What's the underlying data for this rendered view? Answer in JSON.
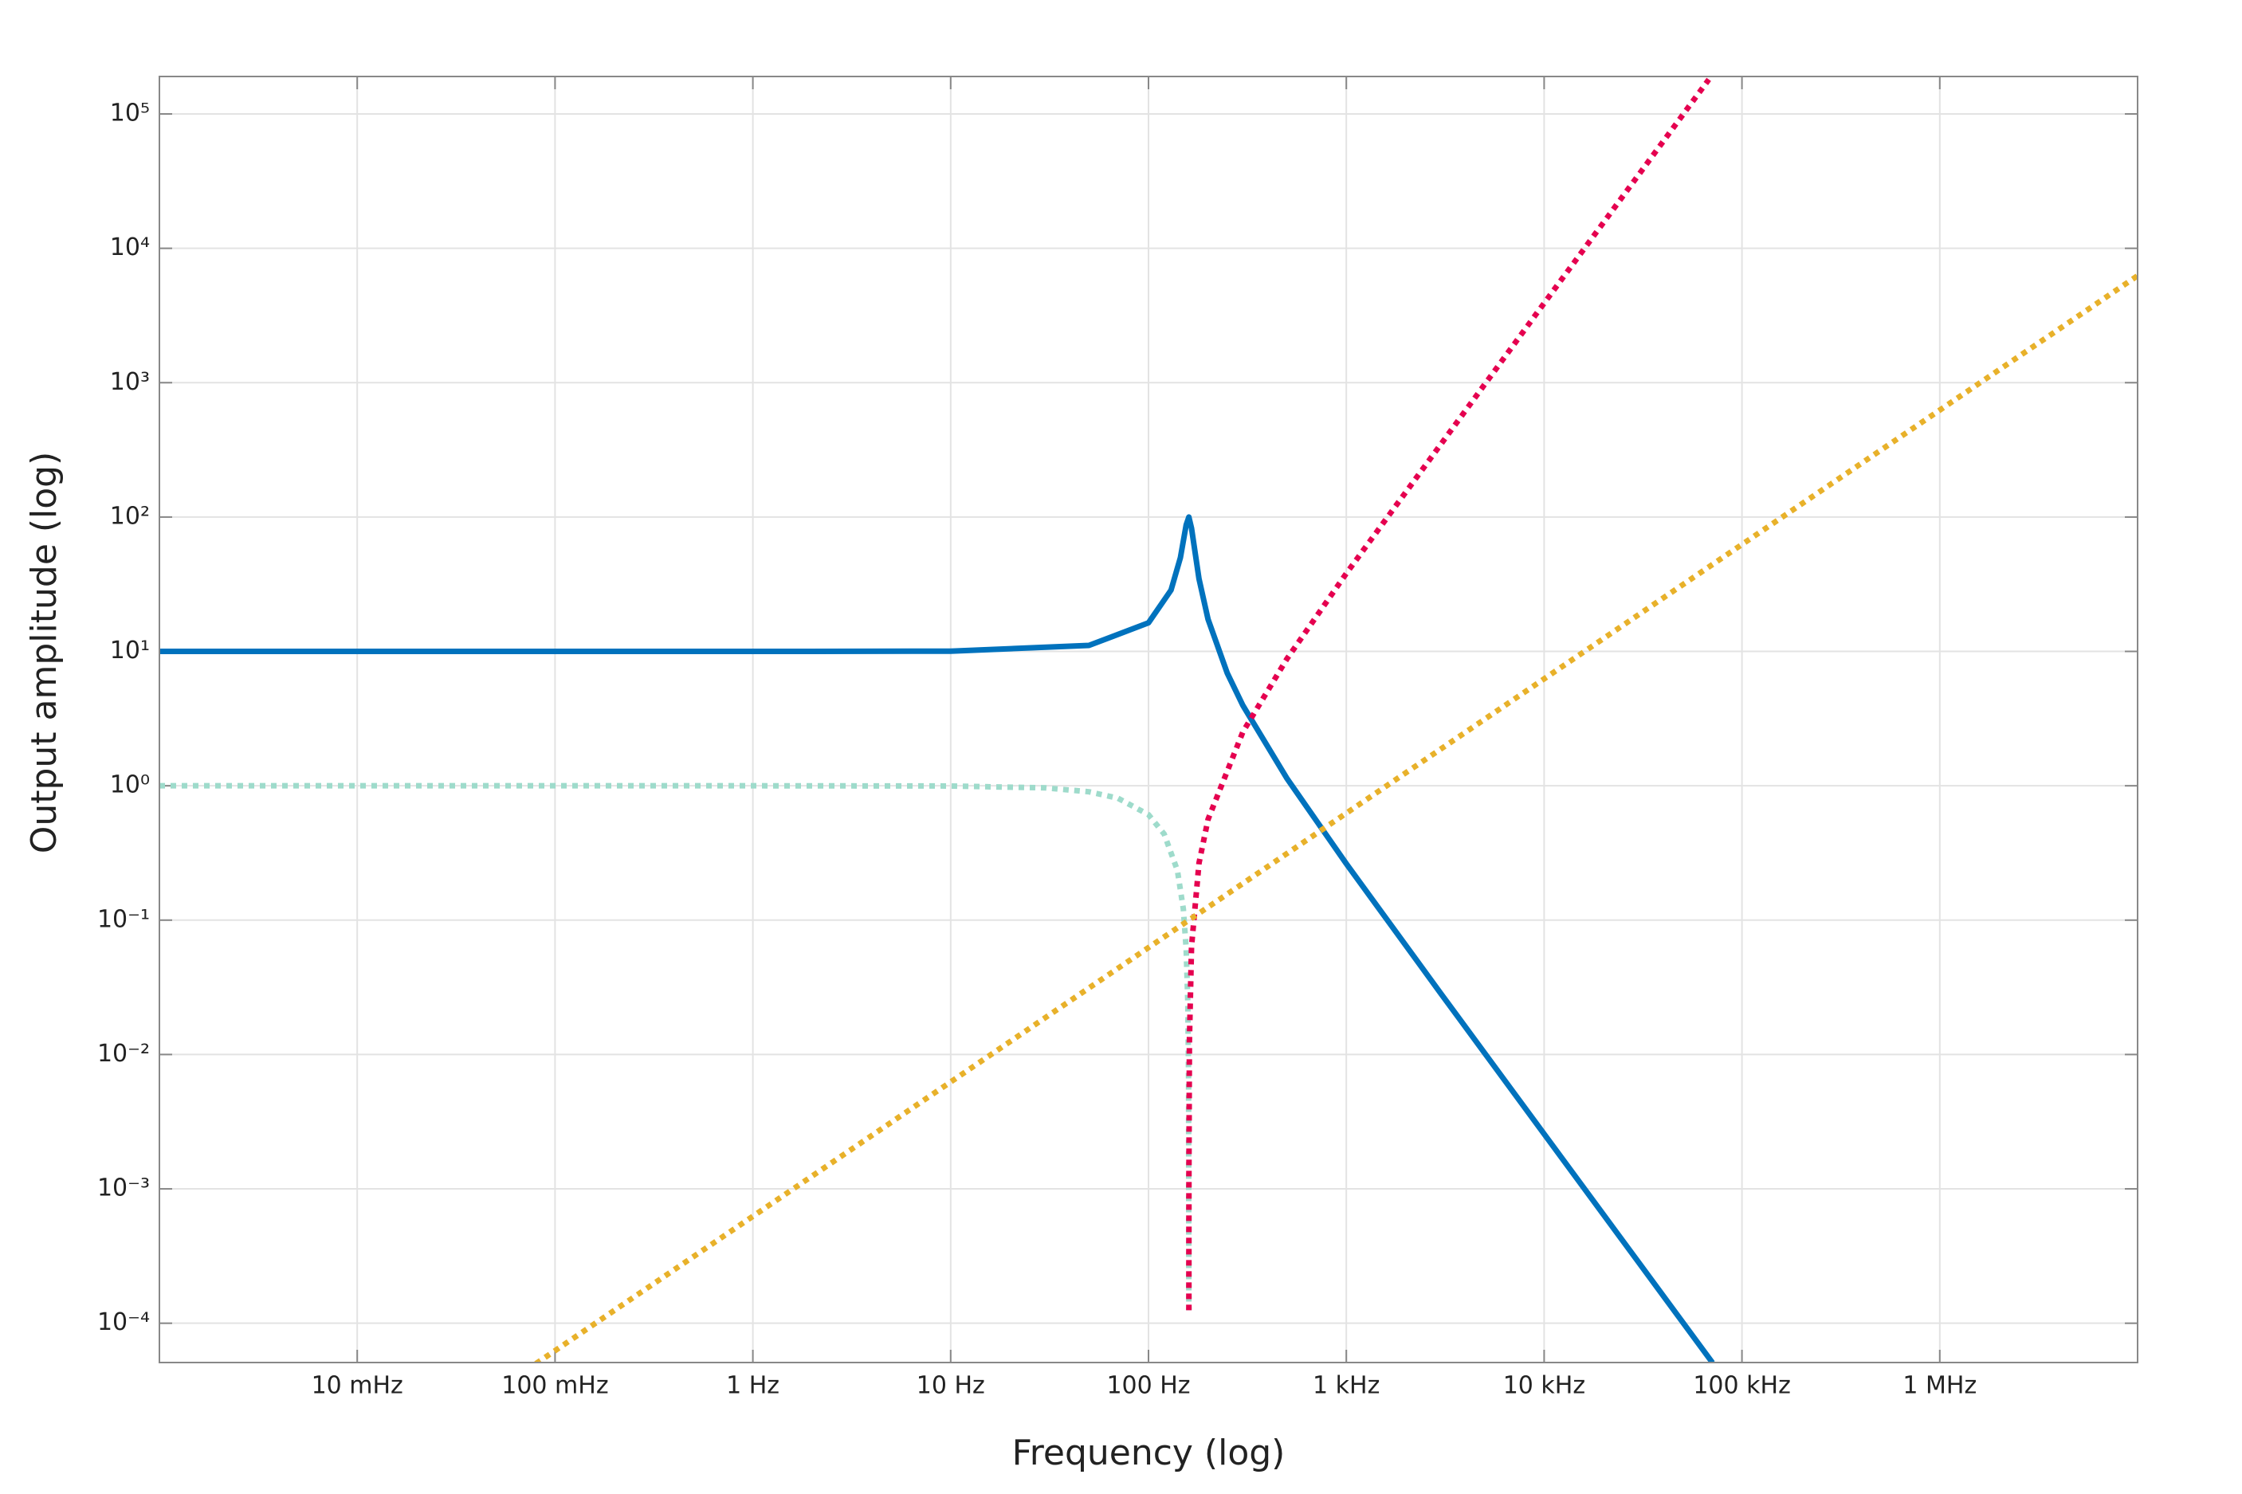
{
  "chart_data": {
    "type": "line",
    "xlabel": "Frequency (log)",
    "ylabel": "Output amplitude (log)",
    "xscale": "log",
    "yscale": "log",
    "grid": true,
    "xlim": [
      0.001,
      10000000
    ],
    "ylim": [
      5.1e-05,
      190000
    ],
    "xticks": [
      {
        "value": 0.01,
        "label": "10 mHz"
      },
      {
        "value": 0.1,
        "label": "100 mHz"
      },
      {
        "value": 1,
        "label": "1 Hz"
      },
      {
        "value": 10,
        "label": "10 Hz"
      },
      {
        "value": 100,
        "label": "100 Hz"
      },
      {
        "value": 1000,
        "label": "1 kHz"
      },
      {
        "value": 10000,
        "label": "10 kHz"
      },
      {
        "value": 100000,
        "label": "100 kHz"
      },
      {
        "value": 1000000,
        "label": "1 MHz"
      }
    ],
    "yticks": [
      {
        "value": 0.0001,
        "label": "10⁻⁴"
      },
      {
        "value": 0.001,
        "label": "10⁻³"
      },
      {
        "value": 0.01,
        "label": "10⁻²"
      },
      {
        "value": 0.1,
        "label": "10⁻¹"
      },
      {
        "value": 1,
        "label": "10⁰"
      },
      {
        "value": 10,
        "label": "10¹"
      },
      {
        "value": 100,
        "label": "10²"
      },
      {
        "value": 1000,
        "label": "10³"
      },
      {
        "value": 10000,
        "label": "10⁴"
      },
      {
        "value": 100000,
        "label": "10⁵"
      }
    ],
    "series": [
      {
        "color": "#0072bd",
        "style": "solid",
        "x": [
          0.001,
          1,
          10,
          50,
          100,
          130,
          145,
          155,
          160,
          165,
          180,
          200,
          250,
          300,
          500,
          1000,
          3000,
          10000,
          30000,
          71000
        ],
        "values": [
          10,
          10,
          10.04,
          11.08,
          16.32,
          28.6,
          49.9,
          87.2,
          100,
          82.6,
          34.7,
          17.35,
          6.9,
          3.96,
          1.14,
          0.2627,
          0.02853,
          0.002561,
          0.0002845,
          5.08e-05
        ]
      },
      {
        "color": "#9edbcb",
        "style": "dotted",
        "x": [
          0.001,
          1,
          10,
          30,
          50,
          70,
          100,
          120,
          140,
          150,
          155,
          158,
          159.5,
          159.99
        ],
        "values": [
          1,
          0.99996,
          0.9961,
          0.9648,
          0.9023,
          0.8086,
          0.6094,
          0.4375,
          0.2344,
          0.1211,
          0.0615,
          0.02484,
          0.00624,
          0.000125
        ]
      },
      {
        "color": "#e5004f",
        "style": "dotted",
        "x": [
          160.01,
          160.1,
          161,
          165,
          180,
          200,
          300,
          500,
          1000,
          10000,
          68000
        ],
        "values": [
          0.000125,
          0.00125,
          0.01254,
          0.0635,
          0.2656,
          0.5625,
          2.5156,
          8.766,
          38.06,
          3905,
          180624
        ]
      },
      {
        "color": "#e8b12a",
        "style": "dotted",
        "x": [
          0.08,
          10000000
        ],
        "values": [
          5e-05,
          6250
        ]
      }
    ]
  }
}
